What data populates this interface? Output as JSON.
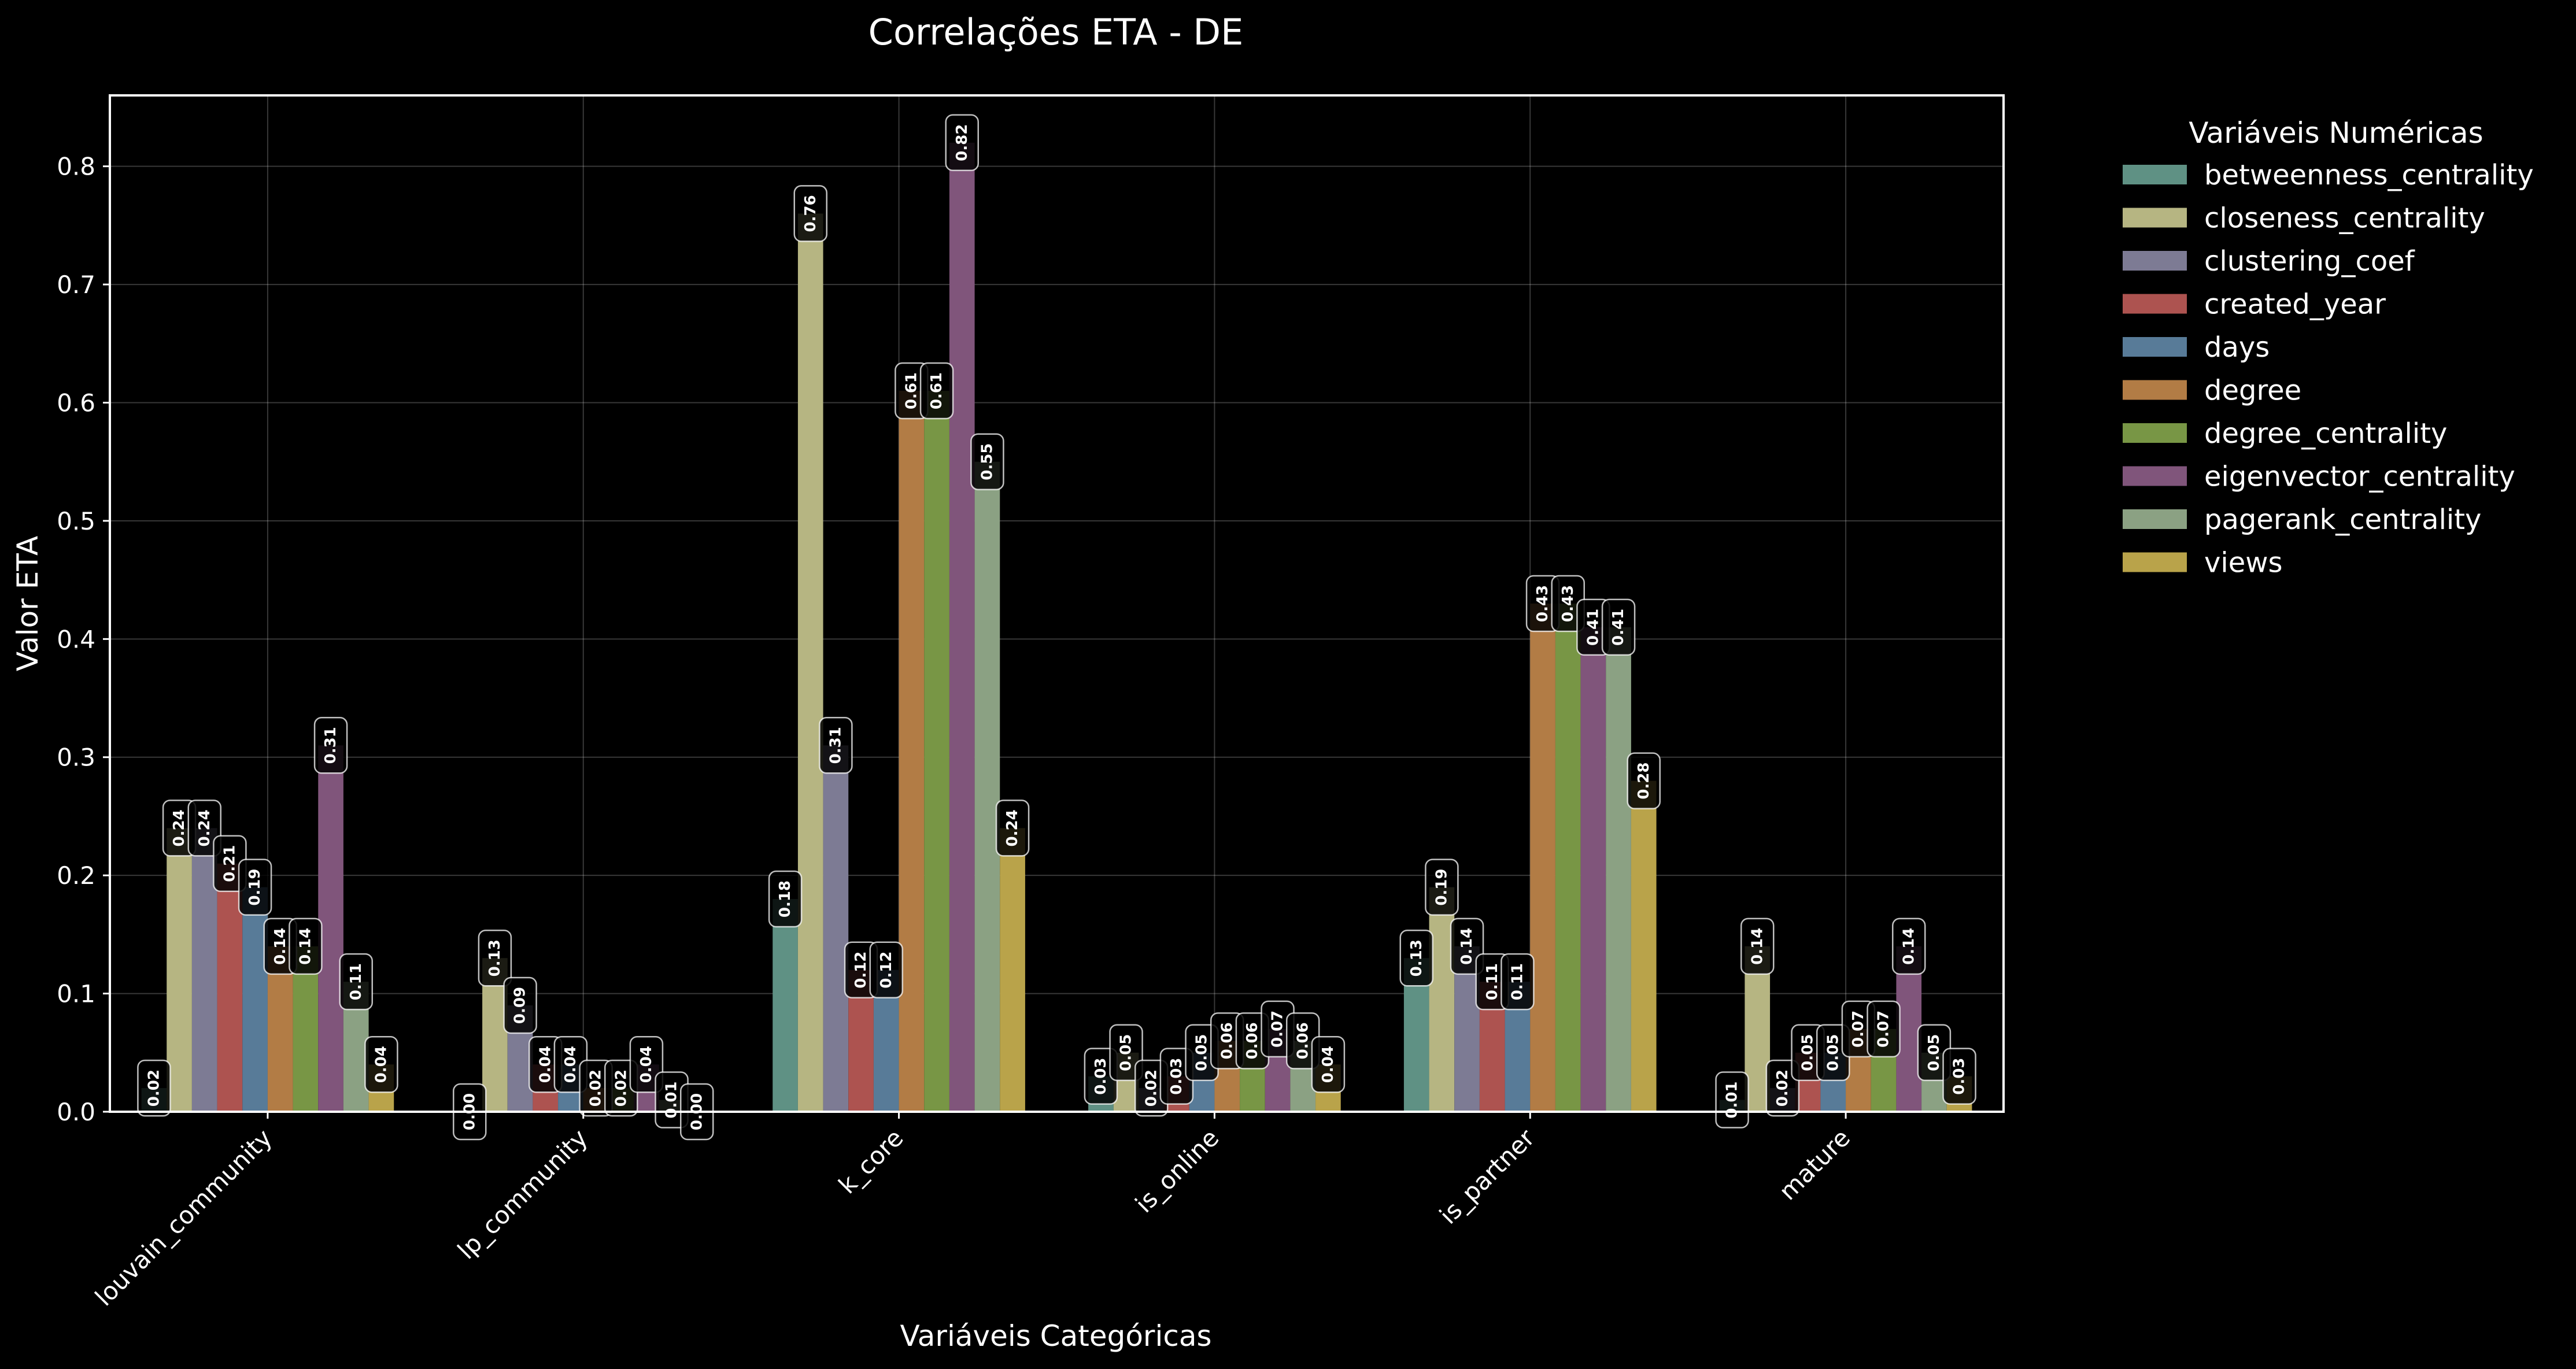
{
  "chart_data": {
    "type": "bar",
    "title": "Correlações ETA - DE",
    "xlabel": "Variáveis Categóricas",
    "ylabel": "Valor ETA",
    "ylim": [
      0,
      0.86
    ],
    "yticks": [
      "0.0",
      "0.1",
      "0.2",
      "0.3",
      "0.4",
      "0.5",
      "0.6",
      "0.7",
      "0.8"
    ],
    "grid": true,
    "legend_title": "Variáveis Numéricas",
    "legend_position": "outside-top-right",
    "categories": [
      "louvain_community",
      "lp_community",
      "k_core",
      "is_online",
      "is_partner",
      "mature"
    ],
    "series": [
      {
        "name": "betweenness_centrality",
        "color": "#5f9184",
        "values": [
          0.02,
          0.0,
          0.18,
          0.03,
          0.13,
          0.01
        ],
        "labels": [
          "0.02",
          "0.00",
          "0.18",
          "0.03",
          "0.13",
          "0.01"
        ]
      },
      {
        "name": "closeness_centrality",
        "color": "#b6b582",
        "values": [
          0.24,
          0.13,
          0.76,
          0.05,
          0.19,
          0.14
        ],
        "labels": [
          "0.24",
          "0.13",
          "0.76",
          "0.05",
          "0.19",
          "0.14"
        ]
      },
      {
        "name": "clustering_coef",
        "color": "#7d7b94",
        "values": [
          0.24,
          0.09,
          0.31,
          0.02,
          0.14,
          0.02
        ],
        "labels": [
          "0.24",
          "0.09",
          "0.31",
          "0.02",
          "0.14",
          "0.02"
        ]
      },
      {
        "name": "created_year",
        "color": "#ad5350",
        "values": [
          0.21,
          0.04,
          0.12,
          0.03,
          0.11,
          0.05
        ],
        "labels": [
          "0.21",
          "0.04",
          "0.12",
          "0.03",
          "0.11",
          "0.05"
        ]
      },
      {
        "name": "days",
        "color": "#587b98",
        "values": [
          0.19,
          0.04,
          0.12,
          0.05,
          0.11,
          0.05
        ],
        "labels": [
          "0.19",
          "0.04",
          "0.12",
          "0.05",
          "0.11",
          "0.05"
        ]
      },
      {
        "name": "degree",
        "color": "#b27c45",
        "values": [
          0.14,
          0.02,
          0.61,
          0.06,
          0.43,
          0.07
        ],
        "labels": [
          "0.14",
          "0.02",
          "0.61",
          "0.06",
          "0.43",
          "0.07"
        ]
      },
      {
        "name": "degree_centrality",
        "color": "#789645",
        "values": [
          0.14,
          0.02,
          0.61,
          0.06,
          0.43,
          0.07
        ],
        "labels": [
          "0.14",
          "0.02",
          "0.61",
          "0.06",
          "0.43",
          "0.07"
        ]
      },
      {
        "name": "eigenvector_centrality",
        "color": "#80557b",
        "values": [
          0.31,
          0.04,
          0.82,
          0.07,
          0.41,
          0.14
        ],
        "labels": [
          "0.31",
          "0.04",
          "0.82",
          "0.07",
          "0.41",
          "0.14"
        ]
      },
      {
        "name": "pagerank_centrality",
        "color": "#8ba183",
        "values": [
          0.11,
          0.01,
          0.55,
          0.06,
          0.41,
          0.05
        ],
        "labels": [
          "0.11",
          "0.01",
          "0.55",
          "0.06",
          "0.41",
          "0.05"
        ]
      },
      {
        "name": "views",
        "color": "#b9a34a",
        "values": [
          0.04,
          0.0,
          0.24,
          0.04,
          0.28,
          0.03
        ],
        "labels": [
          "0.04",
          "0.00",
          "0.24",
          "0.04",
          "0.28",
          "0.03"
        ]
      }
    ]
  }
}
